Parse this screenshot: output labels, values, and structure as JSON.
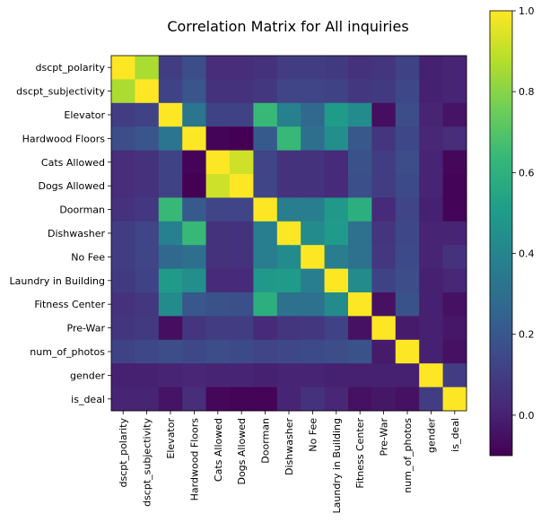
{
  "chart_data": {
    "type": "heatmap",
    "title": "Correlation Matrix for All inquiries",
    "labels": [
      "dscpt_polarity",
      "dscpt_subjectivity",
      "Elevator",
      "Hardwood Floors",
      "Cats Allowed",
      "Dogs Allowed",
      "Doorman",
      "Dishwasher",
      "No Fee",
      "Laundry in Building",
      "Fitness Center",
      "Pre-War",
      "num_of_photos",
      "gender",
      "is_deal"
    ],
    "matrix": [
      [
        1.0,
        0.86,
        0.1,
        0.16,
        0.04,
        0.04,
        0.06,
        0.1,
        0.1,
        0.09,
        0.06,
        0.07,
        0.12,
        0.0,
        0.01
      ],
      [
        0.86,
        1.0,
        0.12,
        0.19,
        0.06,
        0.06,
        0.08,
        0.13,
        0.13,
        0.12,
        0.08,
        0.09,
        0.14,
        0.0,
        0.01
      ],
      [
        0.1,
        0.12,
        1.0,
        0.33,
        0.12,
        0.12,
        0.64,
        0.38,
        0.27,
        0.5,
        0.43,
        -0.06,
        0.16,
        0.01,
        -0.04
      ],
      [
        0.16,
        0.19,
        0.33,
        1.0,
        -0.09,
        -0.1,
        0.21,
        0.64,
        0.3,
        0.44,
        0.2,
        0.07,
        0.14,
        0.02,
        0.04
      ],
      [
        0.04,
        0.06,
        0.12,
        -0.09,
        1.0,
        0.92,
        0.13,
        0.06,
        0.06,
        0.03,
        0.18,
        0.1,
        0.16,
        0.01,
        -0.08
      ],
      [
        0.04,
        0.06,
        0.12,
        -0.1,
        0.92,
        1.0,
        0.13,
        0.06,
        0.06,
        0.03,
        0.17,
        0.1,
        0.15,
        0.01,
        -0.09
      ],
      [
        0.06,
        0.08,
        0.64,
        0.21,
        0.13,
        0.13,
        1.0,
        0.37,
        0.37,
        0.49,
        0.59,
        0.03,
        0.13,
        0.0,
        -0.09
      ],
      [
        0.1,
        0.13,
        0.38,
        0.64,
        0.06,
        0.06,
        0.37,
        1.0,
        0.43,
        0.5,
        0.31,
        0.07,
        0.14,
        0.01,
        0.01
      ],
      [
        0.1,
        0.13,
        0.27,
        0.3,
        0.06,
        0.06,
        0.37,
        0.43,
        1.0,
        0.37,
        0.31,
        0.08,
        0.15,
        0.01,
        0.06
      ],
      [
        0.09,
        0.12,
        0.5,
        0.44,
        0.03,
        0.03,
        0.49,
        0.5,
        0.37,
        1.0,
        0.43,
        0.12,
        0.16,
        0.0,
        0.02
      ],
      [
        0.06,
        0.08,
        0.43,
        0.2,
        0.18,
        0.17,
        0.59,
        0.31,
        0.31,
        0.43,
        1.0,
        -0.05,
        0.18,
        0.0,
        -0.05
      ],
      [
        0.07,
        0.09,
        -0.06,
        0.07,
        0.1,
        0.1,
        0.03,
        0.07,
        0.08,
        0.12,
        -0.05,
        1.0,
        -0.02,
        0.0,
        -0.03
      ],
      [
        0.12,
        0.14,
        0.16,
        0.14,
        0.16,
        0.15,
        0.13,
        0.14,
        0.15,
        0.16,
        0.18,
        -0.02,
        1.0,
        0.0,
        -0.05
      ],
      [
        0.0,
        0.0,
        0.01,
        0.02,
        0.01,
        0.01,
        0.0,
        0.01,
        0.01,
        0.0,
        0.0,
        0.0,
        0.0,
        1.0,
        0.1
      ],
      [
        0.01,
        0.01,
        -0.04,
        0.04,
        -0.08,
        -0.09,
        -0.09,
        0.01,
        0.06,
        0.02,
        -0.05,
        -0.03,
        -0.05,
        0.1,
        1.0
      ]
    ],
    "colorbar": {
      "min": -0.1,
      "max": 1.0,
      "ticks": [
        0.0,
        0.2,
        0.4,
        0.6,
        0.8,
        1.0
      ],
      "tick_labels": [
        "0.0",
        "0.2",
        "0.4",
        "0.6",
        "0.8",
        "1.0"
      ]
    },
    "colormap": "viridis"
  }
}
